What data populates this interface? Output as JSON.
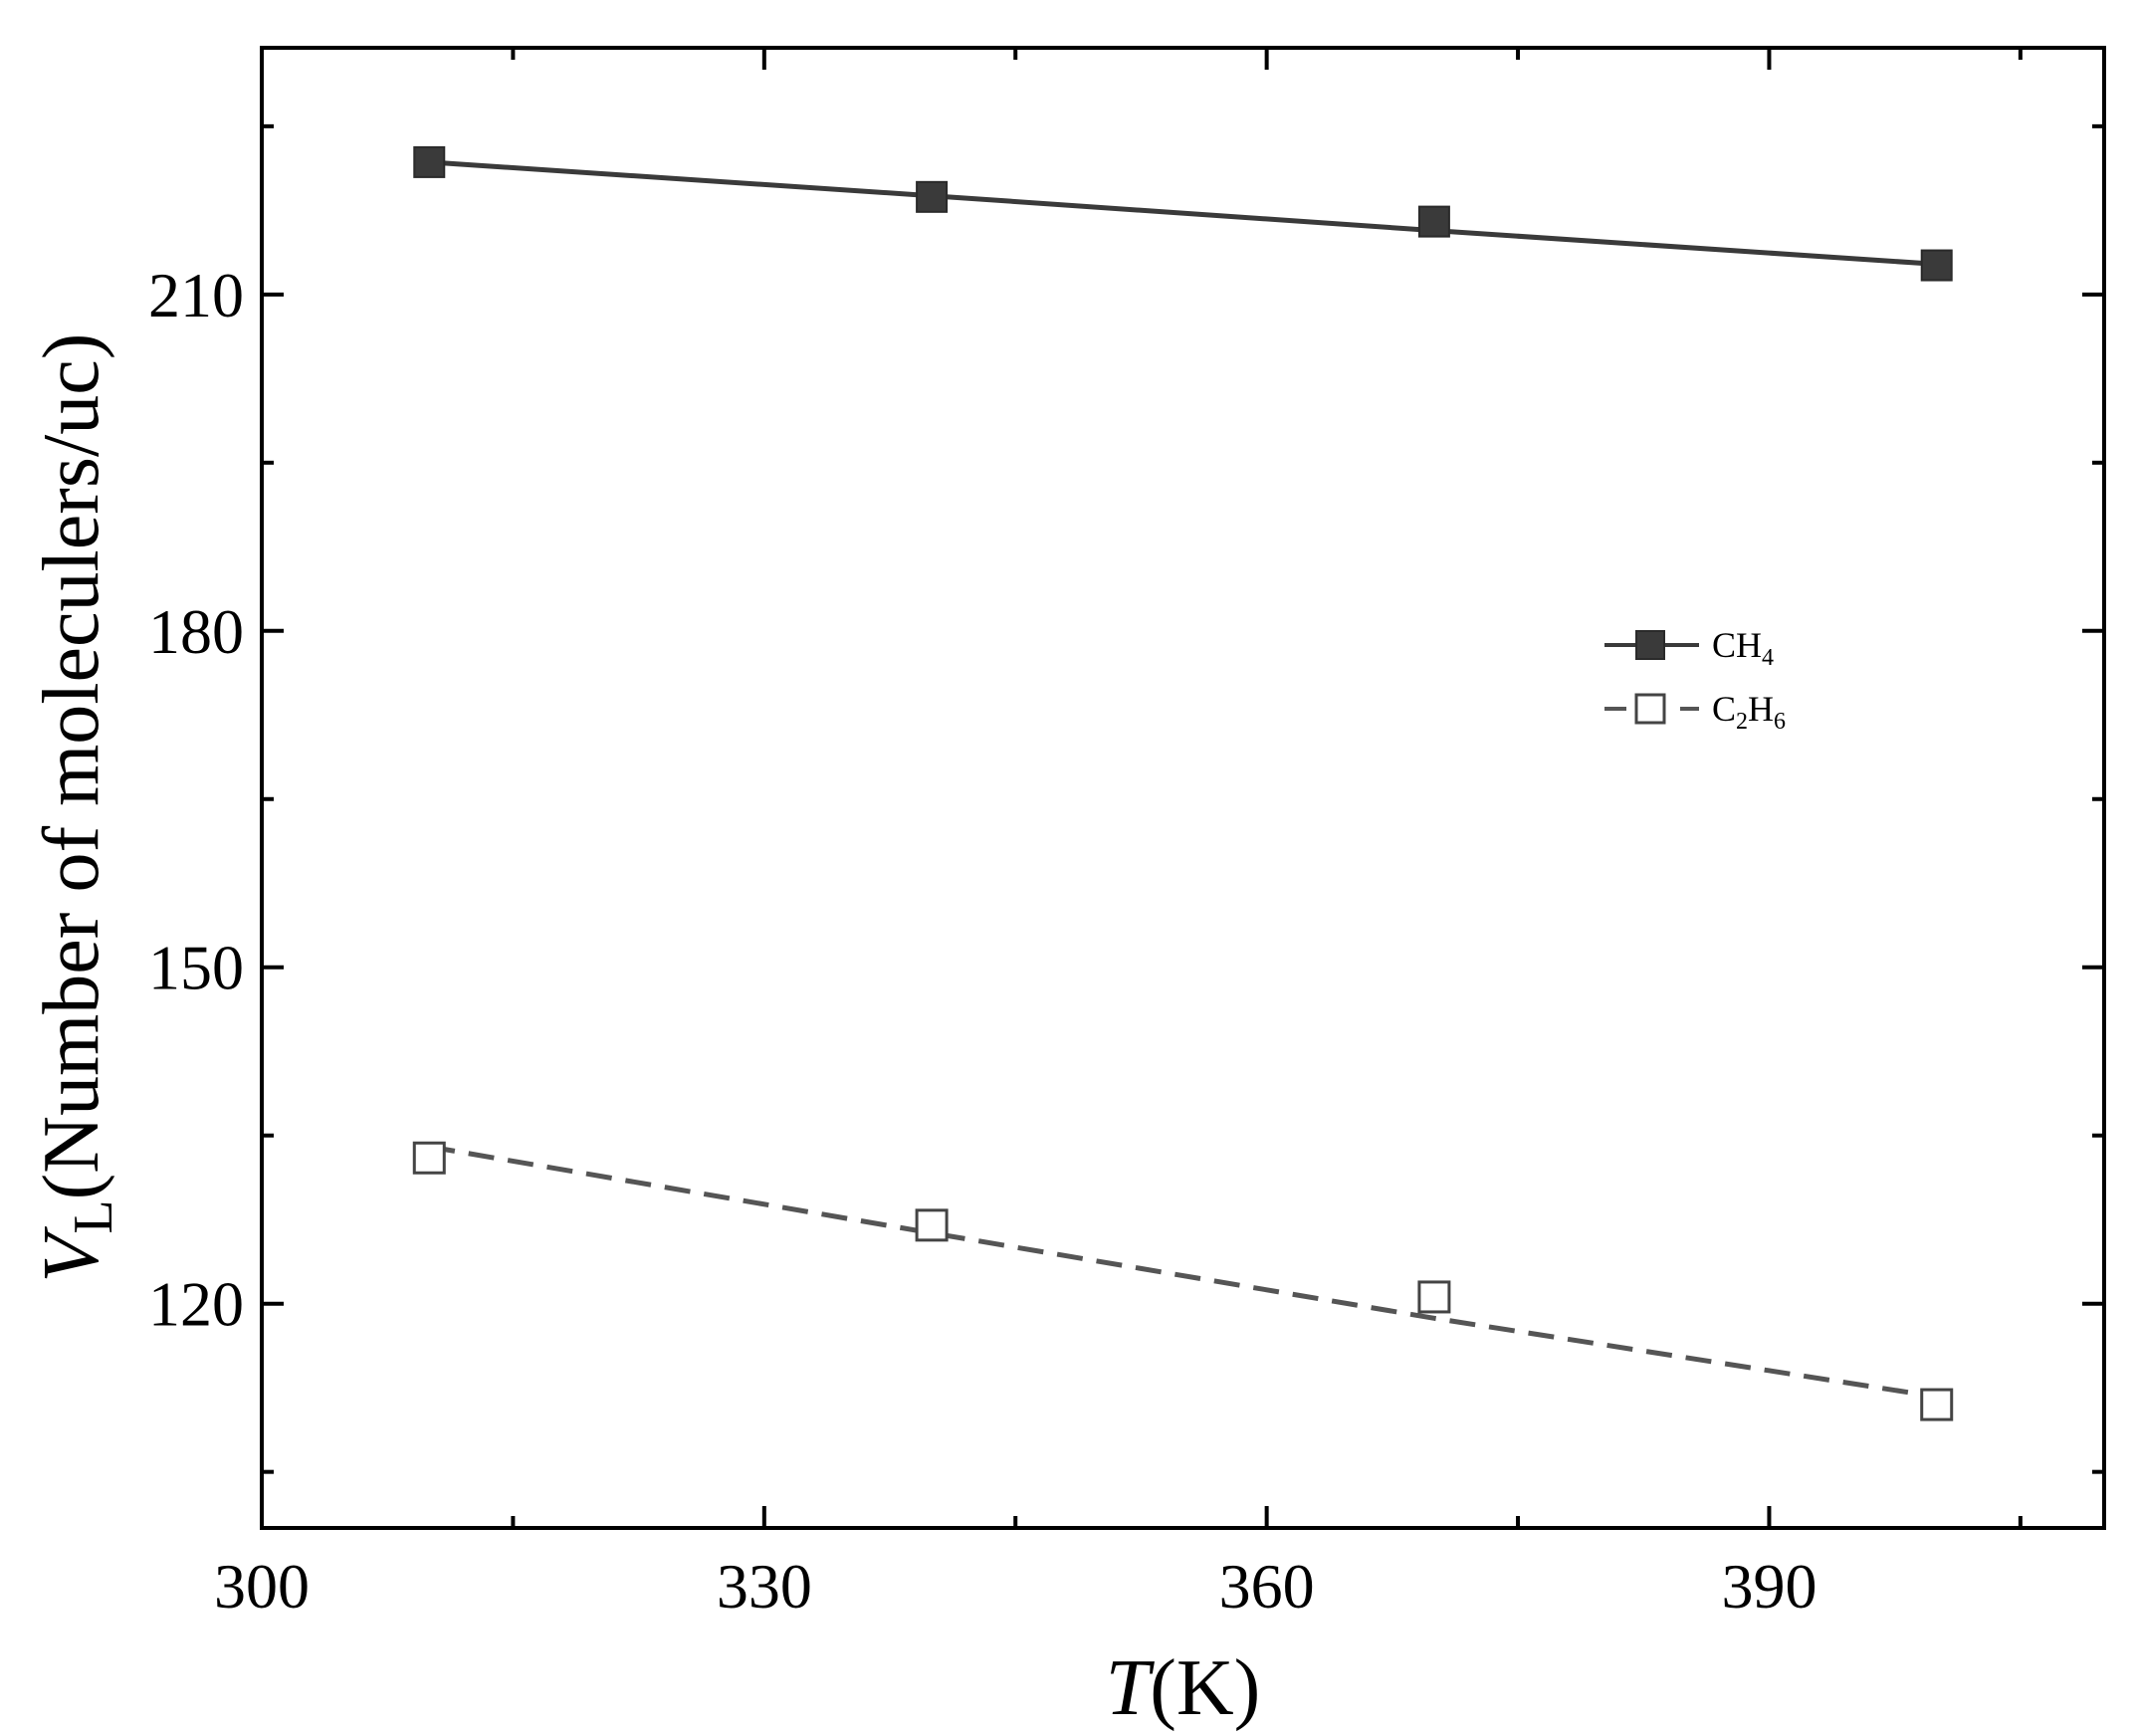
{
  "chart_data": {
    "type": "line",
    "x": [
      310,
      340,
      370,
      400
    ],
    "series": [
      {
        "name": "CH4",
        "label_main": "CH",
        "label_sub": "4",
        "values": [
          221.8,
          218.7,
          216.5,
          212.6
        ],
        "fit_values": [
          221.8,
          218.8,
          215.7,
          212.7
        ],
        "marker": "filled-square",
        "line": "solid",
        "color": "#3a3a3a"
      },
      {
        "name": "C2H6",
        "label_parts": [
          {
            "t": "C",
            "sub": false
          },
          {
            "t": "2",
            "sub": true
          },
          {
            "t": "H",
            "sub": false
          },
          {
            "t": "6",
            "sub": true
          }
        ],
        "values": [
          133.0,
          127.0,
          120.6,
          111.0
        ],
        "fit_values": [
          134.0,
          126.3,
          118.7,
          111.7
        ],
        "marker": "open-square",
        "line": "dashed",
        "color": "#555555"
      }
    ],
    "xlim": [
      300,
      410
    ],
    "ylim": [
      100,
      232
    ],
    "xticks": [
      300,
      330,
      360,
      390
    ],
    "yticks": [
      120,
      150,
      180,
      210
    ],
    "xlabel": {
      "italic": "T",
      "rest": "(K)"
    },
    "ylabel": {
      "italic": "V",
      "sub": "L",
      "rest": "(Number of moleculers/uc)"
    },
    "legend_position": "right, mid-height",
    "grid": false
  }
}
